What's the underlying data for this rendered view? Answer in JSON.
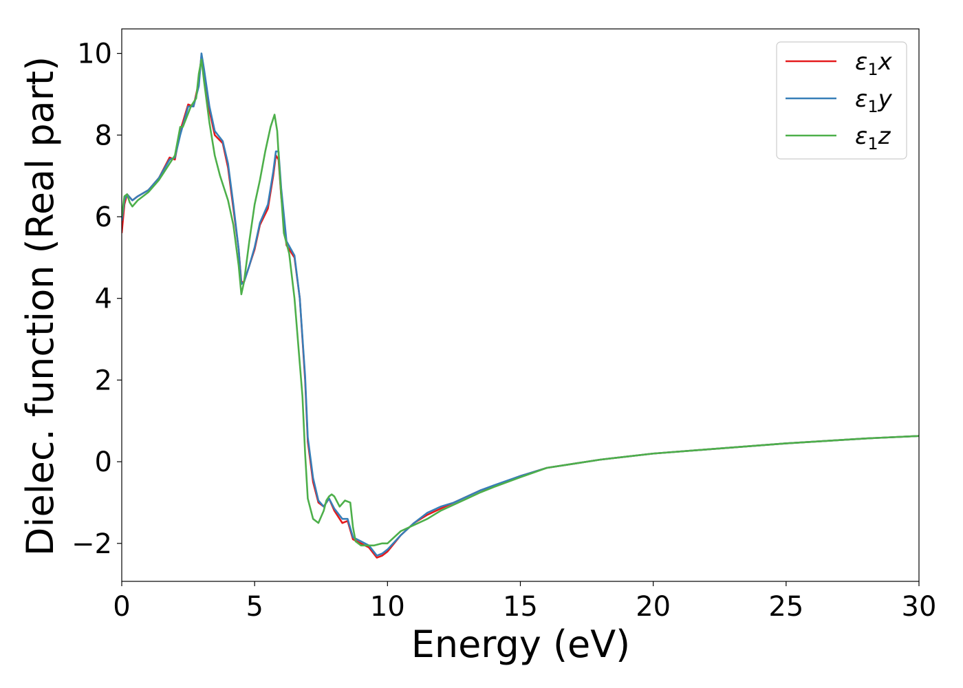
{
  "chart_data": {
    "type": "line",
    "title": "",
    "xlabel": "Energy (eV)",
    "ylabel": "Dielec. function (Real part)",
    "xlim": [
      0,
      30
    ],
    "ylim": [
      -2.93,
      10.6
    ],
    "xticks": [
      0,
      5,
      10,
      15,
      20,
      25,
      30
    ],
    "yticks": [
      -2,
      0,
      2,
      4,
      6,
      8,
      10
    ],
    "xtick_labels": [
      "0",
      "5",
      "10",
      "15",
      "20",
      "25",
      "30"
    ],
    "ytick_labels": [
      "−2",
      "0",
      "2",
      "4",
      "6",
      "8",
      "10"
    ],
    "grid": false,
    "legend_position": "top-right",
    "series": [
      {
        "name": "ε₁x",
        "legend_base": "ε",
        "legend_sub": "1",
        "legend_var": "x",
        "color": "#e41a1c",
        "x": [
          0,
          0.1,
          0.2,
          0.4,
          0.6,
          1.0,
          1.4,
          1.8,
          2.0,
          2.2,
          2.5,
          2.7,
          2.9,
          3.0,
          3.1,
          3.3,
          3.5,
          3.8,
          4.0,
          4.2,
          4.4,
          4.5,
          4.6,
          4.8,
          5.0,
          5.2,
          5.5,
          5.7,
          5.8,
          5.9,
          6.0,
          6.2,
          6.5,
          6.7,
          6.9,
          7.0,
          7.2,
          7.4,
          7.6,
          7.8,
          8.0,
          8.3,
          8.5,
          8.7,
          9.0,
          9.3,
          9.6,
          9.8,
          10.0,
          10.5,
          11.0,
          11.5,
          12.0,
          12.5,
          13.0,
          13.5,
          14.0,
          15.0,
          16.0,
          17.0,
          18.0,
          20.0,
          22.0,
          25.0,
          28.0,
          30.0
        ],
        "y": [
          5.6,
          6.3,
          6.55,
          6.4,
          6.5,
          6.65,
          6.95,
          7.45,
          7.4,
          8.1,
          8.75,
          8.7,
          9.3,
          9.95,
          9.5,
          8.6,
          8.0,
          7.8,
          7.2,
          6.2,
          5.2,
          4.4,
          4.4,
          4.8,
          5.2,
          5.8,
          6.2,
          7.0,
          7.5,
          7.4,
          6.5,
          5.3,
          5.0,
          4.0,
          2.0,
          0.5,
          -0.5,
          -1.0,
          -1.1,
          -0.9,
          -1.2,
          -1.5,
          -1.45,
          -1.9,
          -2.0,
          -2.1,
          -2.35,
          -2.3,
          -2.2,
          -1.8,
          -1.5,
          -1.3,
          -1.15,
          -1.0,
          -0.85,
          -0.7,
          -0.6,
          -0.35,
          -0.15,
          -0.05,
          0.05,
          0.2,
          0.3,
          0.45,
          0.57,
          0.63
        ]
      },
      {
        "name": "ε₁y",
        "legend_base": "ε",
        "legend_sub": "1",
        "legend_var": "y",
        "color": "#377eb8",
        "x": [
          0,
          0.1,
          0.2,
          0.4,
          0.6,
          1.0,
          1.4,
          1.8,
          2.0,
          2.2,
          2.5,
          2.7,
          2.9,
          3.0,
          3.1,
          3.3,
          3.5,
          3.8,
          4.0,
          4.2,
          4.4,
          4.5,
          4.6,
          4.8,
          5.0,
          5.2,
          5.5,
          5.7,
          5.8,
          5.9,
          6.0,
          6.2,
          6.5,
          6.7,
          6.9,
          7.0,
          7.2,
          7.4,
          7.6,
          7.8,
          8.0,
          8.3,
          8.5,
          8.7,
          9.0,
          9.3,
          9.6,
          9.8,
          10.0,
          10.5,
          11.0,
          11.5,
          12.0,
          12.5,
          13.0,
          13.5,
          14.0,
          15.0,
          16.0,
          17.0,
          18.0,
          20.0,
          22.0,
          25.0,
          28.0,
          30.0
        ],
        "y": [
          5.9,
          6.4,
          6.55,
          6.4,
          6.5,
          6.65,
          6.95,
          7.4,
          7.45,
          8.0,
          8.7,
          8.7,
          9.2,
          10.0,
          9.6,
          8.7,
          8.1,
          7.85,
          7.3,
          6.3,
          5.2,
          4.35,
          4.4,
          4.8,
          5.25,
          5.85,
          6.3,
          7.1,
          7.6,
          7.6,
          6.7,
          5.4,
          5.05,
          4.0,
          2.1,
          0.6,
          -0.4,
          -0.95,
          -1.1,
          -0.9,
          -1.15,
          -1.4,
          -1.4,
          -1.85,
          -1.95,
          -2.05,
          -2.3,
          -2.25,
          -2.15,
          -1.8,
          -1.5,
          -1.25,
          -1.1,
          -1.0,
          -0.85,
          -0.7,
          -0.58,
          -0.35,
          -0.15,
          -0.05,
          0.05,
          0.2,
          0.3,
          0.45,
          0.57,
          0.63
        ]
      },
      {
        "name": "ε₁z",
        "legend_base": "ε",
        "legend_sub": "1",
        "legend_var": "z",
        "color": "#4daf4a",
        "x": [
          0,
          0.1,
          0.2,
          0.3,
          0.4,
          0.6,
          1.0,
          1.4,
          1.8,
          2.0,
          2.2,
          2.3,
          2.6,
          2.8,
          2.9,
          3.0,
          3.1,
          3.3,
          3.5,
          3.7,
          4.0,
          4.2,
          4.4,
          4.5,
          4.6,
          4.8,
          5.0,
          5.2,
          5.4,
          5.6,
          5.75,
          5.85,
          5.95,
          6.1,
          6.3,
          6.5,
          6.6,
          6.8,
          6.9,
          7.0,
          7.2,
          7.4,
          7.6,
          7.7,
          7.8,
          7.9,
          8.0,
          8.2,
          8.4,
          8.6,
          8.7,
          8.8,
          9.0,
          9.2,
          9.5,
          9.8,
          10.0,
          10.5,
          11.0,
          11.5,
          12.0,
          12.5,
          13.0,
          13.5,
          14.0,
          15.0,
          16.0,
          17.0,
          18.0,
          20.0,
          22.0,
          25.0,
          28.0,
          30.0
        ],
        "y": [
          6.0,
          6.5,
          6.55,
          6.35,
          6.25,
          6.4,
          6.6,
          6.9,
          7.3,
          7.5,
          8.2,
          8.2,
          8.7,
          8.9,
          9.5,
          9.85,
          9.3,
          8.3,
          7.5,
          7.0,
          6.4,
          5.8,
          4.8,
          4.1,
          4.4,
          5.4,
          6.3,
          6.9,
          7.6,
          8.2,
          8.5,
          8.1,
          7.0,
          5.6,
          5.1,
          4.0,
          3.2,
          1.6,
          0.2,
          -0.9,
          -1.4,
          -1.5,
          -1.2,
          -0.95,
          -0.85,
          -0.8,
          -0.85,
          -1.1,
          -0.95,
          -1.0,
          -1.6,
          -1.95,
          -2.05,
          -2.05,
          -2.05,
          -2.0,
          -2.0,
          -1.7,
          -1.55,
          -1.4,
          -1.2,
          -1.05,
          -0.9,
          -0.75,
          -0.62,
          -0.38,
          -0.15,
          -0.05,
          0.05,
          0.2,
          0.3,
          0.45,
          0.57,
          0.63
        ]
      }
    ]
  }
}
